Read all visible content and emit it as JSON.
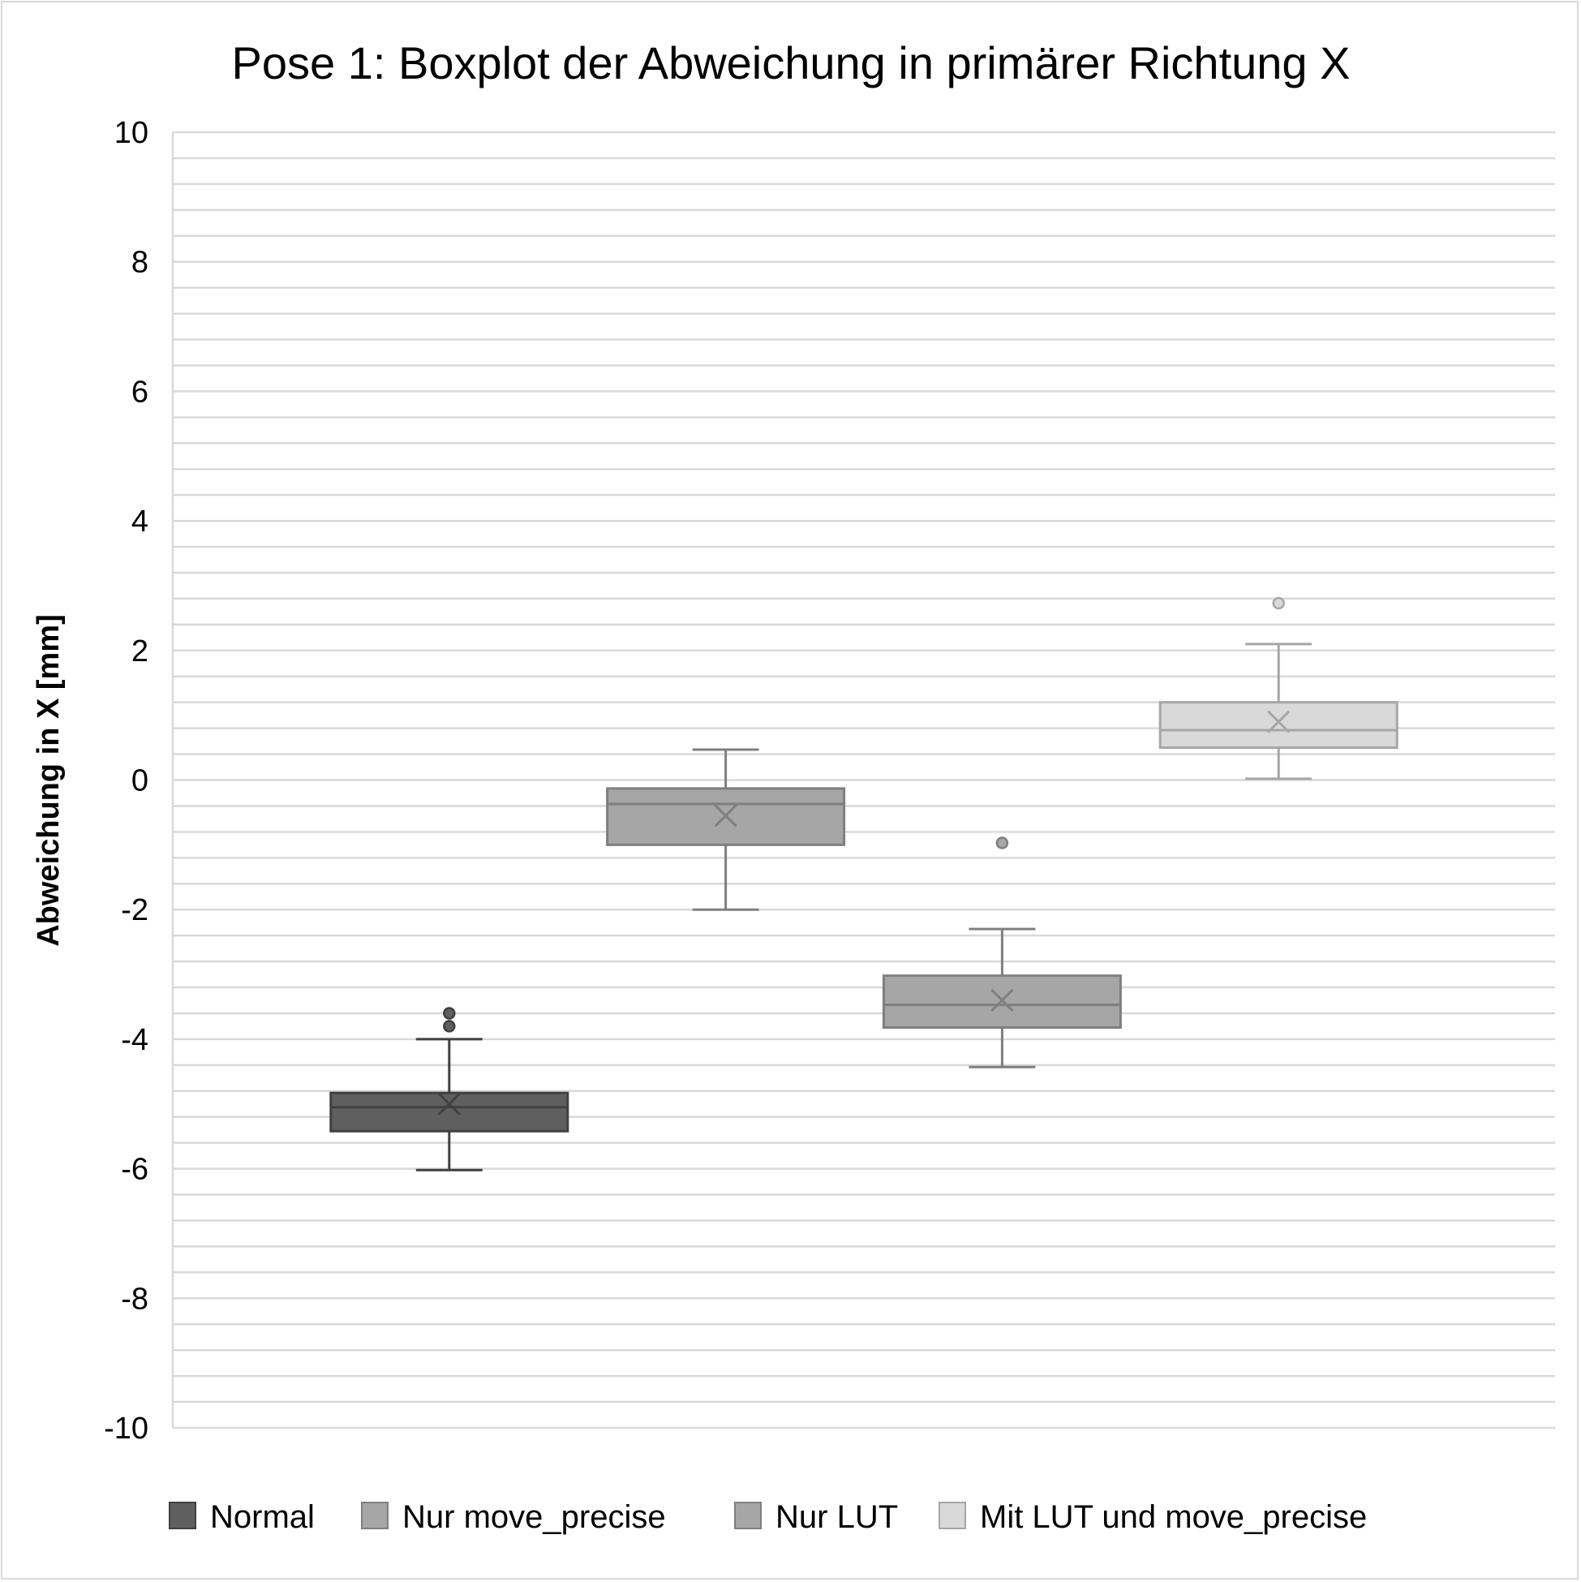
{
  "chart_data": {
    "type": "box",
    "title": "Pose 1: Boxplot der Abweichung in primärer Richtung X",
    "xlabel": "",
    "ylabel": "Abweichung in X [mm]",
    "ylim": [
      -10,
      10
    ],
    "y_ticks": [
      "10",
      "8",
      "6",
      "4",
      "2",
      "0",
      "-2",
      "-4",
      "-6",
      "-8",
      "-10"
    ],
    "grid": true,
    "minor_grid_step": 0.4,
    "legend_position": "bottom",
    "series": [
      {
        "name": "Normal",
        "color": "#5f5f5f",
        "edge_color": "#404040",
        "whisker_low": -6.02,
        "q1": -5.42,
        "median": -5.05,
        "q3": -4.83,
        "whisker_high": -4.0,
        "mean": -5.0,
        "outliers": [
          -3.6,
          -3.8
        ]
      },
      {
        "name": "Nur move_precise",
        "color": "#a6a6a6",
        "edge_color": "#7f7f7f",
        "whisker_low": -2.0,
        "q1": -1.0,
        "median": -0.37,
        "q3": -0.13,
        "whisker_high": 0.47,
        "mean": -0.55,
        "outliers": []
      },
      {
        "name": "Nur LUT",
        "color": "#a6a6a6",
        "edge_color": "#7f7f7f",
        "whisker_low": -4.43,
        "q1": -3.82,
        "median": -3.47,
        "q3": -3.02,
        "whisker_high": -2.3,
        "mean": -3.4,
        "outliers": [
          -0.97
        ]
      },
      {
        "name": "Mit LUT und move_precise",
        "color": "#d9d9d9",
        "edge_color": "#a6a6a6",
        "whisker_low": 0.02,
        "q1": 0.5,
        "median": 0.77,
        "q3": 1.2,
        "whisker_high": 2.1,
        "mean": 0.9,
        "outliers": [
          2.73
        ]
      }
    ]
  }
}
